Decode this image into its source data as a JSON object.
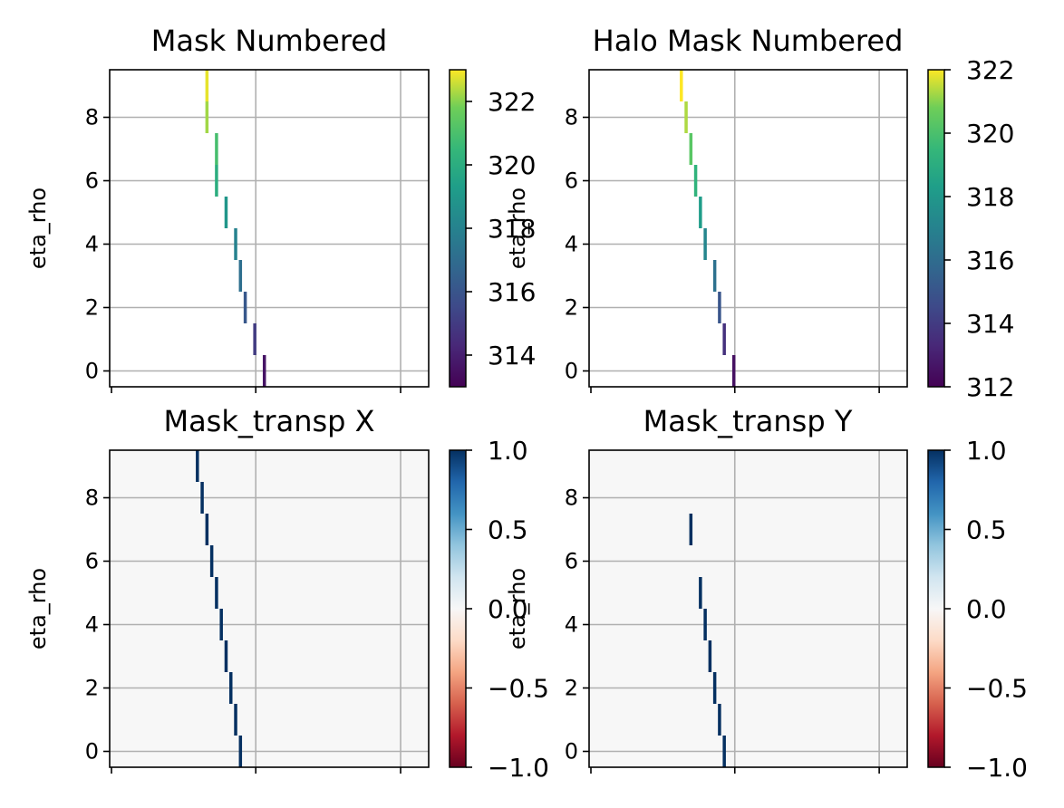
{
  "chart_data": [
    {
      "type": "heatmap",
      "title": "Mask Numbered",
      "ylabel": "eta_rho",
      "ylim": [
        -0.5,
        9.5
      ],
      "yticks": [
        "0",
        "2",
        "4",
        "6",
        "8"
      ],
      "grid": true,
      "colormap": "viridis",
      "colorbar": {
        "range": [
          313,
          323
        ],
        "ticks": [
          "314",
          "316",
          "318",
          "320",
          "322"
        ]
      },
      "cells": [
        {
          "row": 9,
          "col": 1.0,
          "value": 322.8
        },
        {
          "row": 8,
          "col": 1.0,
          "value": 322.2
        },
        {
          "row": 7,
          "col": 1.1,
          "value": 320.9
        },
        {
          "row": 6,
          "col": 1.1,
          "value": 320.0
        },
        {
          "row": 5,
          "col": 1.2,
          "value": 318.9
        },
        {
          "row": 4,
          "col": 1.3,
          "value": 318.0
        },
        {
          "row": 3,
          "col": 1.35,
          "value": 317.1
        },
        {
          "row": 2,
          "col": 1.4,
          "value": 316.1
        },
        {
          "row": 1,
          "col": 1.5,
          "value": 315.0
        },
        {
          "row": 0,
          "col": 1.6,
          "value": 313.6
        }
      ]
    },
    {
      "type": "heatmap",
      "title": "Halo Mask Numbered",
      "ylabel": "eta_rho",
      "ylim": [
        -0.5,
        9.5
      ],
      "yticks": [
        "0",
        "2",
        "4",
        "6",
        "8"
      ],
      "grid": true,
      "colormap": "viridis",
      "colorbar": {
        "range": [
          312,
          322
        ],
        "ticks": [
          "312",
          "314",
          "316",
          "318",
          "320",
          "322"
        ]
      },
      "cells": [
        {
          "row": 9,
          "col": 0.95,
          "value": 322.0
        },
        {
          "row": 8,
          "col": 1.0,
          "value": 321.3
        },
        {
          "row": 7,
          "col": 1.05,
          "value": 320.3
        },
        {
          "row": 6,
          "col": 1.1,
          "value": 319.3
        },
        {
          "row": 5,
          "col": 1.15,
          "value": 318.2
        },
        {
          "row": 4,
          "col": 1.2,
          "value": 317.2
        },
        {
          "row": 3,
          "col": 1.3,
          "value": 316.2
        },
        {
          "row": 2,
          "col": 1.35,
          "value": 315.0
        },
        {
          "row": 1,
          "col": 1.4,
          "value": 313.6
        },
        {
          "row": 0,
          "col": 1.5,
          "value": 312.5
        }
      ]
    },
    {
      "type": "heatmap",
      "title": "Mask_transp X",
      "ylabel": "eta_rho",
      "ylim": [
        -0.5,
        9.5
      ],
      "yticks": [
        "0",
        "2",
        "4",
        "6",
        "8"
      ],
      "grid": true,
      "colormap": "RdBu",
      "background_value": 0.0,
      "colorbar": {
        "range": [
          -1.0,
          1.0
        ],
        "ticks": [
          "−1.0",
          "−0.5",
          "0.0",
          "0.5",
          "1.0"
        ]
      },
      "cells": [
        {
          "row": 9,
          "col": 0.9,
          "value": 1.0
        },
        {
          "row": 8,
          "col": 0.95,
          "value": 1.0
        },
        {
          "row": 7,
          "col": 1.0,
          "value": 1.0
        },
        {
          "row": 6,
          "col": 1.05,
          "value": 1.0
        },
        {
          "row": 5,
          "col": 1.1,
          "value": 1.0
        },
        {
          "row": 4,
          "col": 1.15,
          "value": 1.0
        },
        {
          "row": 3,
          "col": 1.2,
          "value": 1.0
        },
        {
          "row": 2,
          "col": 1.25,
          "value": 1.0
        },
        {
          "row": 1,
          "col": 1.3,
          "value": 1.0
        },
        {
          "row": 0,
          "col": 1.35,
          "value": 1.0
        }
      ]
    },
    {
      "type": "heatmap",
      "title": "Mask_transp Y",
      "ylabel": "eta_rho",
      "ylim": [
        -0.5,
        9.5
      ],
      "yticks": [
        "0",
        "2",
        "4",
        "6",
        "8"
      ],
      "grid": true,
      "colormap": "RdBu",
      "background_value": 0.0,
      "colorbar": {
        "range": [
          -1.0,
          1.0
        ],
        "ticks": [
          "−1.0",
          "−0.5",
          "0.0",
          "0.5",
          "1.0"
        ]
      },
      "cells": [
        {
          "row": 7,
          "col": 1.05,
          "value": 1.0
        },
        {
          "row": 5,
          "col": 1.15,
          "value": 1.0
        },
        {
          "row": 4,
          "col": 1.2,
          "value": 1.0
        },
        {
          "row": 3,
          "col": 1.25,
          "value": 1.0
        },
        {
          "row": 2,
          "col": 1.3,
          "value": 1.0
        },
        {
          "row": 1,
          "col": 1.35,
          "value": 1.0
        },
        {
          "row": 0,
          "col": 1.4,
          "value": 1.0
        }
      ]
    }
  ]
}
